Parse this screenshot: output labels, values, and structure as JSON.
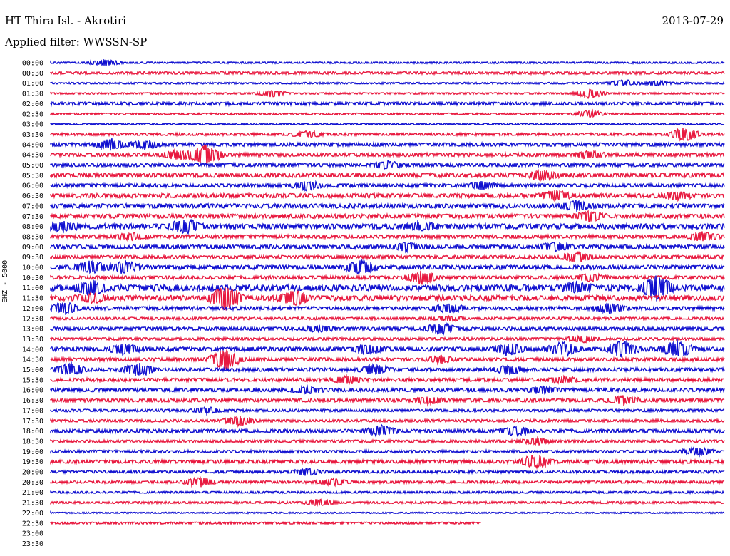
{
  "header": {
    "station": "HT Thira Isl. - Akrotiri",
    "date": "2013-07-29",
    "filter": "Applied filter: WWSSN-SP",
    "channel": "EHZ - 5000"
  },
  "colors": {
    "even_rows": "#1010d0",
    "odd_rows": "#e8193f"
  },
  "chart_data": {
    "type": "line",
    "title": "HT Thira Isl. - Akrotiri",
    "ylabel": "EHZ - 5000",
    "trace_rows": [
      {
        "label": "00:00",
        "color": "blue",
        "amp": 1,
        "coverage": 1.0,
        "events": [
          [
            0.08,
            3
          ]
        ]
      },
      {
        "label": "00:30",
        "color": "red",
        "amp": 1.5,
        "coverage": 1.0,
        "events": []
      },
      {
        "label": "01:00",
        "color": "blue",
        "amp": 1,
        "coverage": 1.0,
        "events": [
          [
            0.85,
            3
          ],
          [
            0.9,
            2
          ]
        ]
      },
      {
        "label": "01:30",
        "color": "red",
        "amp": 1,
        "coverage": 1.0,
        "events": [
          [
            0.33,
            3
          ],
          [
            0.8,
            4
          ]
        ]
      },
      {
        "label": "02:00",
        "color": "blue",
        "amp": 1.8,
        "coverage": 1.0,
        "events": []
      },
      {
        "label": "02:30",
        "color": "red",
        "amp": 1,
        "coverage": 1.0,
        "events": [
          [
            0.8,
            3
          ]
        ]
      },
      {
        "label": "03:00",
        "color": "blue",
        "amp": 0.8,
        "coverage": 1.0,
        "events": []
      },
      {
        "label": "03:30",
        "color": "red",
        "amp": 1.5,
        "coverage": 1.0,
        "events": [
          [
            0.38,
            3
          ],
          [
            0.94,
            6
          ]
        ]
      },
      {
        "label": "04:00",
        "color": "blue",
        "amp": 2,
        "coverage": 1.0,
        "events": [
          [
            0.09,
            5
          ],
          [
            0.14,
            4
          ]
        ]
      },
      {
        "label": "04:30",
        "color": "red",
        "amp": 2,
        "coverage": 1.0,
        "events": [
          [
            0.23,
            9
          ],
          [
            0.19,
            4
          ],
          [
            0.8,
            3
          ]
        ]
      },
      {
        "label": "05:00",
        "color": "blue",
        "amp": 2,
        "coverage": 1.0,
        "events": [
          [
            0.5,
            3
          ]
        ]
      },
      {
        "label": "05:30",
        "color": "red",
        "amp": 2.5,
        "coverage": 1.0,
        "events": [
          [
            0.73,
            4
          ]
        ]
      },
      {
        "label": "06:00",
        "color": "blue",
        "amp": 2,
        "coverage": 1.0,
        "events": [
          [
            0.38,
            4
          ],
          [
            0.64,
            3
          ]
        ]
      },
      {
        "label": "06:30",
        "color": "red",
        "amp": 2.5,
        "coverage": 1.0,
        "events": [
          [
            0.75,
            4
          ],
          [
            0.93,
            3
          ]
        ]
      },
      {
        "label": "07:00",
        "color": "blue",
        "amp": 2.5,
        "coverage": 1.0,
        "events": [
          [
            0.78,
            4
          ]
        ]
      },
      {
        "label": "07:30",
        "color": "red",
        "amp": 2.5,
        "coverage": 1.0,
        "events": [
          [
            0.8,
            4
          ]
        ]
      },
      {
        "label": "08:00",
        "color": "blue",
        "amp": 3,
        "coverage": 1.0,
        "events": [
          [
            0.02,
            4
          ],
          [
            0.2,
            6
          ],
          [
            0.55,
            3
          ]
        ]
      },
      {
        "label": "08:30",
        "color": "red",
        "amp": 2,
        "coverage": 1.0,
        "events": [
          [
            0.12,
            3
          ],
          [
            0.97,
            4
          ]
        ]
      },
      {
        "label": "09:00",
        "color": "blue",
        "amp": 2.5,
        "coverage": 1.0,
        "events": [
          [
            0.75,
            4
          ],
          [
            0.53,
            3
          ]
        ]
      },
      {
        "label": "09:30",
        "color": "red",
        "amp": 2,
        "coverage": 1.0,
        "events": [
          [
            0.78,
            4
          ]
        ]
      },
      {
        "label": "10:00",
        "color": "blue",
        "amp": 2.5,
        "coverage": 1.0,
        "events": [
          [
            0.06,
            5
          ],
          [
            0.11,
            5
          ],
          [
            0.46,
            6
          ]
        ]
      },
      {
        "label": "10:30",
        "color": "red",
        "amp": 2,
        "coverage": 1.0,
        "events": [
          [
            0.55,
            6
          ],
          [
            0.8,
            3
          ]
        ]
      },
      {
        "label": "11:00",
        "color": "blue",
        "amp": 3.5,
        "coverage": 1.0,
        "events": [
          [
            0.06,
            6
          ],
          [
            0.9,
            10
          ],
          [
            0.78,
            4
          ]
        ]
      },
      {
        "label": "11:30",
        "color": "red",
        "amp": 3,
        "coverage": 1.0,
        "events": [
          [
            0.26,
            11
          ],
          [
            0.36,
            6
          ],
          [
            0.06,
            4
          ]
        ]
      },
      {
        "label": "12:00",
        "color": "blue",
        "amp": 2,
        "coverage": 1.0,
        "events": [
          [
            0.02,
            5
          ],
          [
            0.59,
            4
          ],
          [
            0.83,
            4
          ]
        ]
      },
      {
        "label": "12:30",
        "color": "red",
        "amp": 1.5,
        "coverage": 1.0,
        "events": [
          [
            0.59,
            2
          ]
        ]
      },
      {
        "label": "13:00",
        "color": "blue",
        "amp": 2,
        "coverage": 1.0,
        "events": [
          [
            0.4,
            3
          ],
          [
            0.58,
            5
          ]
        ]
      },
      {
        "label": "13:30",
        "color": "red",
        "amp": 1.5,
        "coverage": 1.0,
        "events": [
          [
            0.79,
            3
          ]
        ]
      },
      {
        "label": "14:00",
        "color": "blue",
        "amp": 2.5,
        "coverage": 1.0,
        "events": [
          [
            0.11,
            4
          ],
          [
            0.47,
            4
          ],
          [
            0.68,
            5
          ],
          [
            0.76,
            6
          ],
          [
            0.85,
            7
          ],
          [
            0.93,
            8
          ]
        ]
      },
      {
        "label": "14:30",
        "color": "red",
        "amp": 2,
        "coverage": 1.0,
        "events": [
          [
            0.26,
            10
          ],
          [
            0.58,
            3
          ]
        ]
      },
      {
        "label": "15:00",
        "color": "blue",
        "amp": 2,
        "coverage": 1.0,
        "events": [
          [
            0.03,
            5
          ],
          [
            0.13,
            6
          ],
          [
            0.48,
            4
          ],
          [
            0.68,
            4
          ]
        ]
      },
      {
        "label": "15:30",
        "color": "red",
        "amp": 2,
        "coverage": 1.0,
        "events": [
          [
            0.44,
            3
          ],
          [
            0.76,
            3
          ]
        ]
      },
      {
        "label": "16:00",
        "color": "blue",
        "amp": 2,
        "coverage": 1.0,
        "events": [
          [
            0.38,
            3
          ],
          [
            0.73,
            3
          ]
        ]
      },
      {
        "label": "16:30",
        "color": "red",
        "amp": 2,
        "coverage": 1.0,
        "events": [
          [
            0.56,
            3
          ],
          [
            0.85,
            4
          ]
        ]
      },
      {
        "label": "17:00",
        "color": "blue",
        "amp": 1.5,
        "coverage": 1.0,
        "events": [
          [
            0.23,
            3
          ]
        ]
      },
      {
        "label": "17:30",
        "color": "red",
        "amp": 1.5,
        "coverage": 1.0,
        "events": [
          [
            0.28,
            4
          ]
        ]
      },
      {
        "label": "18:00",
        "color": "blue",
        "amp": 2,
        "coverage": 1.0,
        "events": [
          [
            0.49,
            5
          ],
          [
            0.69,
            4
          ]
        ]
      },
      {
        "label": "18:30",
        "color": "red",
        "amp": 1.5,
        "coverage": 1.0,
        "events": [
          [
            0.72,
            3
          ]
        ]
      },
      {
        "label": "19:00",
        "color": "blue",
        "amp": 1.5,
        "coverage": 1.0,
        "events": [
          [
            0.96,
            4
          ]
        ]
      },
      {
        "label": "19:30",
        "color": "red",
        "amp": 2,
        "coverage": 1.0,
        "events": [
          [
            0.72,
            6
          ]
        ]
      },
      {
        "label": "20:00",
        "color": "blue",
        "amp": 1.5,
        "coverage": 1.0,
        "events": [
          [
            0.38,
            3
          ]
        ]
      },
      {
        "label": "20:30",
        "color": "red",
        "amp": 1.5,
        "coverage": 1.0,
        "events": [
          [
            0.22,
            4
          ],
          [
            0.42,
            3
          ]
        ]
      },
      {
        "label": "21:00",
        "color": "blue",
        "amp": 1.2,
        "coverage": 1.0,
        "events": []
      },
      {
        "label": "21:30",
        "color": "red",
        "amp": 1.2,
        "coverage": 1.0,
        "events": [
          [
            0.4,
            3
          ]
        ]
      },
      {
        "label": "22:00",
        "color": "blue",
        "amp": 0.8,
        "coverage": 1.0,
        "events": []
      },
      {
        "label": "22:30",
        "color": "red",
        "amp": 1.2,
        "coverage": 0.64,
        "events": []
      },
      {
        "label": "23:00",
        "color": "blue",
        "amp": 0,
        "coverage": 0,
        "events": []
      },
      {
        "label": "23:30",
        "color": "red",
        "amp": 0,
        "coverage": 0,
        "events": []
      }
    ]
  }
}
